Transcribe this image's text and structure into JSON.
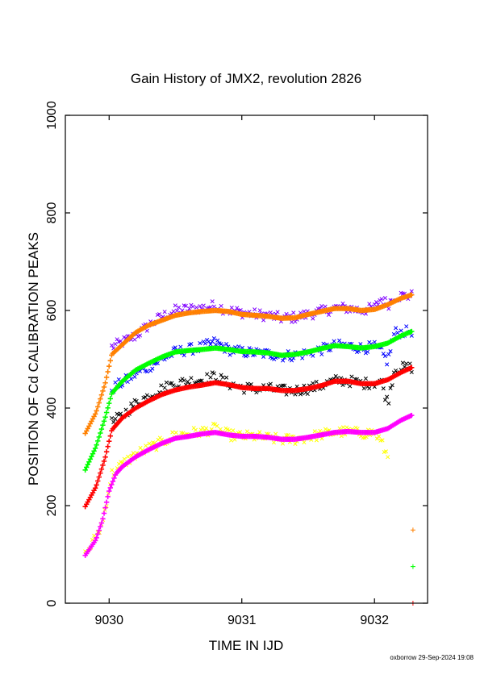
{
  "chart_data": {
    "type": "scatter",
    "title": "Gain History of JMX2, revolution 2826",
    "xlabel": "TIME IN IJD",
    "ylabel": "POSITION OF Cd CALIBRATION PEAKS",
    "xlim": [
      9029.67,
      9032.4
    ],
    "ylim": [
      0,
      1000
    ],
    "x_ticks": [
      9030,
      9031,
      9032
    ],
    "x_tick_labels": [
      "9030",
      "9031",
      "9032"
    ],
    "y_ticks": [
      0,
      200,
      400,
      600,
      800,
      1000
    ],
    "y_tick_labels": [
      "0",
      "200",
      "400",
      "600",
      "800",
      "1000"
    ],
    "grid": false,
    "footer": "oxborrow 29-Sep-2024 19:08",
    "series": [
      {
        "color": "#ff8000",
        "marker": "+",
        "style": "smooth",
        "x": [
          9029.82,
          9029.9,
          9029.97,
          9030.02,
          9030.1,
          9030.2,
          9030.3,
          9030.4,
          9030.5,
          9030.6,
          9030.7,
          9030.8,
          9030.9,
          9031.0,
          9031.1,
          9031.2,
          9031.3,
          9031.4,
          9031.5,
          9031.6,
          9031.7,
          9031.8,
          9031.9,
          9032.0,
          9032.1,
          9032.2,
          9032.28
        ],
        "y": [
          348,
          390,
          450,
          510,
          530,
          555,
          570,
          580,
          590,
          595,
          598,
          600,
          598,
          592,
          590,
          588,
          584,
          585,
          592,
          598,
          604,
          604,
          600,
          602,
          612,
          625,
          632
        ]
      },
      {
        "color": "#00ff00",
        "marker": "+",
        "style": "smooth",
        "x": [
          9029.82,
          9029.9,
          9029.97,
          9030.02,
          9030.1,
          9030.2,
          9030.3,
          9030.4,
          9030.5,
          9030.6,
          9030.7,
          9030.8,
          9030.9,
          9031.0,
          9031.1,
          9031.2,
          9031.3,
          9031.4,
          9031.5,
          9031.6,
          9031.7,
          9031.8,
          9031.9,
          9032.0,
          9032.1,
          9032.2,
          9032.28
        ],
        "y": [
          273,
          320,
          380,
          430,
          455,
          478,
          492,
          505,
          515,
          518,
          520,
          523,
          520,
          516,
          515,
          513,
          508,
          510,
          515,
          522,
          528,
          526,
          523,
          526,
          533,
          548,
          557
        ]
      },
      {
        "color": "#ff0000",
        "marker": "+",
        "style": "smooth",
        "x": [
          9029.82,
          9029.9,
          9029.97,
          9030.02,
          9030.1,
          9030.2,
          9030.3,
          9030.4,
          9030.5,
          9030.6,
          9030.7,
          9030.8,
          9030.9,
          9031.0,
          9031.1,
          9031.2,
          9031.3,
          9031.4,
          9031.5,
          9031.6,
          9031.7,
          9031.8,
          9031.9,
          9032.0,
          9032.1,
          9032.2,
          9032.28
        ],
        "y": [
          198,
          238,
          298,
          355,
          380,
          400,
          415,
          428,
          437,
          443,
          447,
          452,
          448,
          442,
          440,
          440,
          436,
          436,
          440,
          446,
          455,
          455,
          450,
          450,
          458,
          473,
          483
        ]
      },
      {
        "color": "#ff00ff",
        "marker": "+",
        "style": "smooth",
        "x": [
          9029.82,
          9029.9,
          9029.95,
          9030.0,
          9030.05,
          9030.1,
          9030.2,
          9030.3,
          9030.4,
          9030.5,
          9030.6,
          9030.7,
          9030.8,
          9030.9,
          9031.0,
          9031.1,
          9031.2,
          9031.3,
          9031.4,
          9031.5,
          9031.6,
          9031.7,
          9031.8,
          9031.9,
          9032.0,
          9032.1,
          9032.2,
          9032.28
        ],
        "y": [
          98,
          130,
          170,
          230,
          265,
          280,
          300,
          315,
          328,
          338,
          342,
          347,
          350,
          345,
          342,
          342,
          340,
          336,
          336,
          340,
          345,
          350,
          352,
          350,
          350,
          358,
          375,
          385
        ]
      },
      {
        "color": "#7f00ff",
        "marker": "x",
        "style": "noisy",
        "x": [
          9030.02,
          9030.1,
          9030.2,
          9030.3,
          9030.4,
          9030.5,
          9030.6,
          9030.7,
          9030.8,
          9030.9,
          9031.0,
          9031.1,
          9031.2,
          9031.3,
          9031.4,
          9031.5,
          9031.6,
          9031.7,
          9031.8,
          9031.9,
          9032.0,
          9032.05,
          9032.1,
          9032.15,
          9032.2,
          9032.28
        ],
        "y": [
          525,
          535,
          548,
          570,
          588,
          600,
          603,
          605,
          610,
          600,
          596,
          592,
          590,
          584,
          586,
          592,
          598,
          605,
          605,
          600,
          605,
          625,
          612,
          628,
          630,
          630
        ]
      },
      {
        "color": "#0000ff",
        "marker": "x",
        "style": "noisy",
        "x": [
          9030.02,
          9030.1,
          9030.2,
          9030.3,
          9030.4,
          9030.5,
          9030.6,
          9030.7,
          9030.8,
          9030.9,
          9031.0,
          9031.1,
          9031.2,
          9031.3,
          9031.4,
          9031.5,
          9031.6,
          9031.7,
          9031.8,
          9031.9,
          9032.0,
          9032.05,
          9032.1,
          9032.15,
          9032.2,
          9032.28
        ],
        "y": [
          440,
          452,
          470,
          485,
          500,
          515,
          520,
          525,
          535,
          520,
          515,
          513,
          511,
          507,
          508,
          513,
          520,
          528,
          528,
          523,
          525,
          515,
          495,
          555,
          555,
          558
        ]
      },
      {
        "color": "#000000",
        "marker": "x",
        "style": "noisy",
        "x": [
          9030.02,
          9030.1,
          9030.2,
          9030.3,
          9030.4,
          9030.5,
          9030.6,
          9030.7,
          9030.8,
          9030.9,
          9031.0,
          9031.1,
          9031.2,
          9031.3,
          9031.4,
          9031.5,
          9031.6,
          9031.7,
          9031.8,
          9031.9,
          9032.0,
          9032.05,
          9032.1,
          9032.15,
          9032.2,
          9032.28
        ],
        "y": [
          370,
          385,
          410,
          425,
          440,
          450,
          455,
          458,
          465,
          450,
          442,
          440,
          440,
          436,
          436,
          440,
          446,
          456,
          456,
          450,
          452,
          455,
          410,
          480,
          482,
          483
        ]
      },
      {
        "color": "#ffff00",
        "marker": "x",
        "style": "noisy",
        "x": [
          9029.82,
          9029.9,
          9029.95,
          9030.02,
          9030.1,
          9030.2,
          9030.3,
          9030.4,
          9030.5,
          9030.6,
          9030.7,
          9030.8,
          9030.9,
          9031.0,
          9031.1,
          9031.2,
          9031.3,
          9031.4,
          9031.5,
          9031.6,
          9031.7,
          9031.8,
          9031.9,
          9032.0,
          9032.05,
          9032.1
        ],
        "y": [
          100,
          135,
          165,
          265,
          285,
          305,
          318,
          330,
          345,
          348,
          352,
          358,
          345,
          342,
          342,
          338,
          335,
          336,
          340,
          346,
          350,
          352,
          348,
          350,
          330,
          300
        ]
      },
      {
        "color": "#ff8000",
        "marker": "+",
        "style": "points",
        "x": [
          9032.29
        ],
        "y": [
          150
        ]
      },
      {
        "color": "#00ff00",
        "marker": "+",
        "style": "points",
        "x": [
          9032.29
        ],
        "y": [
          75
        ]
      },
      {
        "color": "#ff0000",
        "marker": "+",
        "style": "points",
        "x": [
          9032.29
        ],
        "y": [
          0
        ]
      }
    ]
  }
}
